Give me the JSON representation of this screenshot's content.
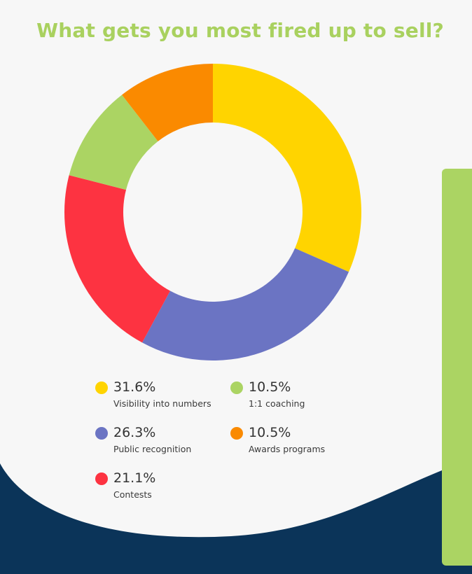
{
  "title": "What gets you most fired up to sell?",
  "colors": {
    "background": "#f7f7f7",
    "wave": "#0b3459",
    "title": "#a9d15f",
    "panel": "#abd463"
  },
  "chart_data": {
    "type": "pie",
    "variant": "donut",
    "title": "What gets you most fired up to sell?",
    "legend_position": "bottom",
    "slices": [
      {
        "label": "Visibility into numbers",
        "value": 31.6,
        "display": "31.6%",
        "color": "#ffd400"
      },
      {
        "label": "Public recognition",
        "value": 26.3,
        "display": "26.3%",
        "color": "#6b74c3"
      },
      {
        "label": "Contests",
        "value": 21.1,
        "display": "21.1%",
        "color": "#fd3341"
      },
      {
        "label": "1:1 coaching",
        "value": 10.5,
        "display": "10.5%",
        "color": "#abd463"
      },
      {
        "label": "Awards programs",
        "value": 10.5,
        "display": "10.5%",
        "color": "#fa8a00"
      }
    ]
  }
}
